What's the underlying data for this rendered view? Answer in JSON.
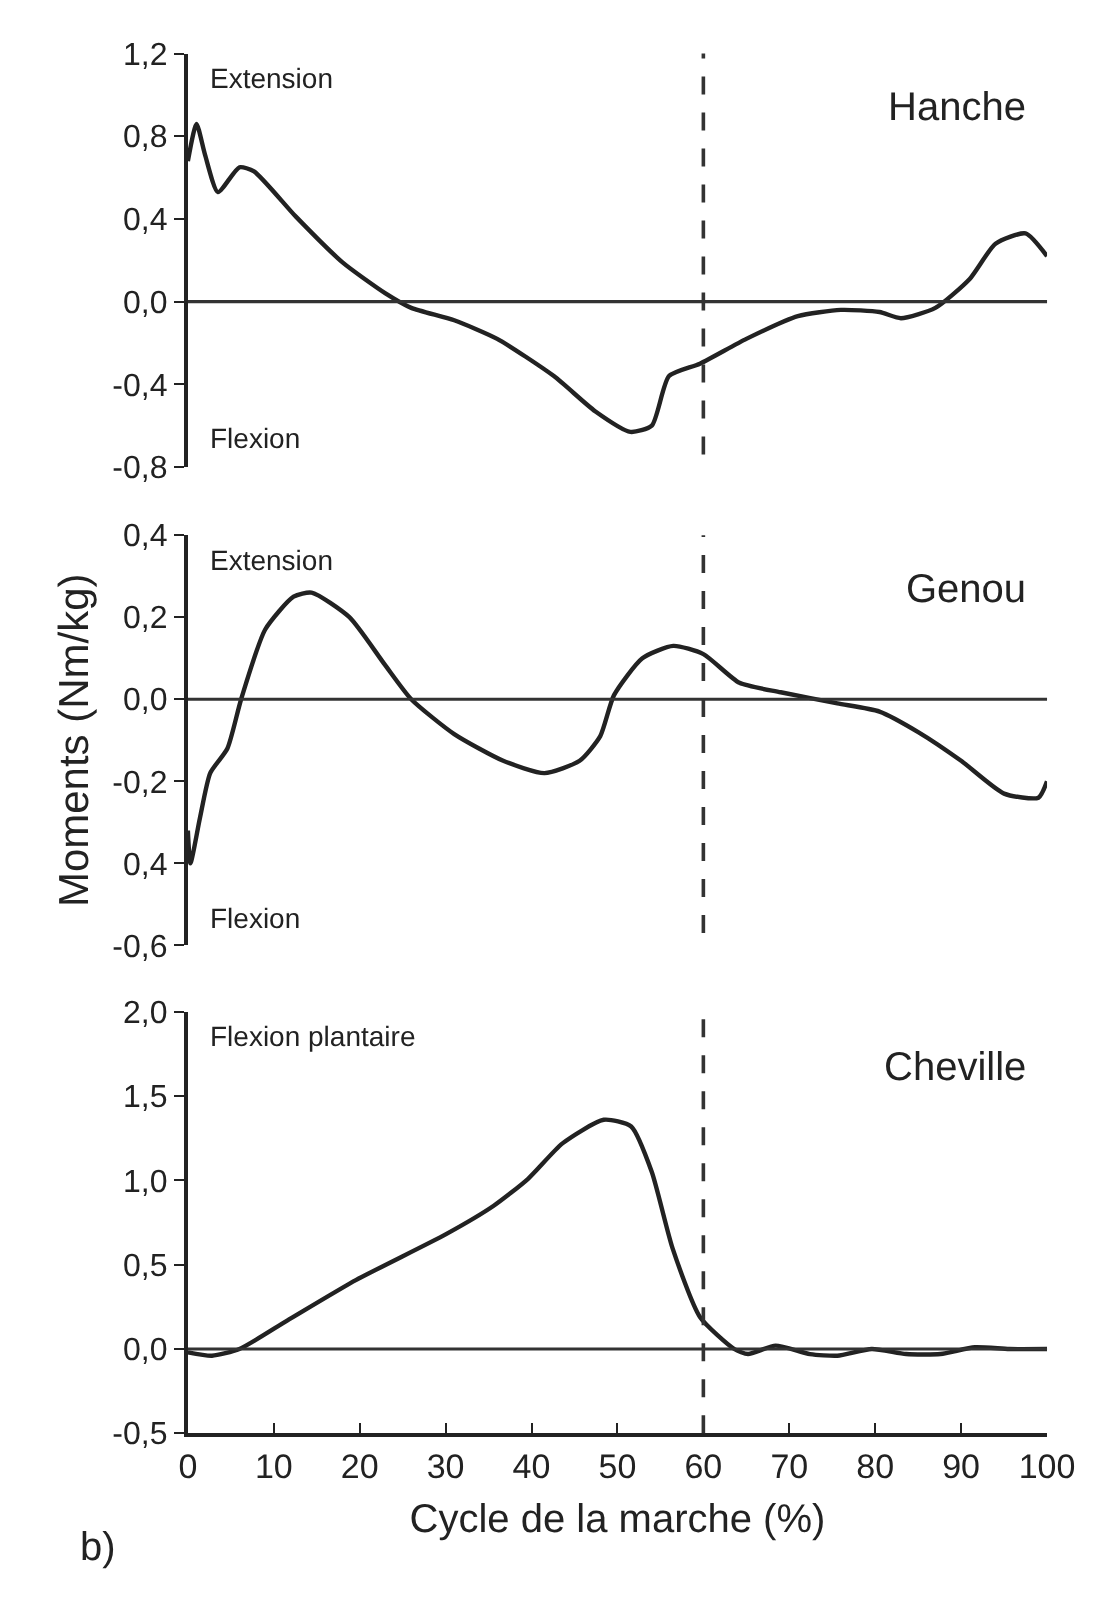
{
  "chart_data": [
    {
      "type": "line",
      "title": "Hanche",
      "annotations": [
        "Extension",
        "Flexion"
      ],
      "x": [
        0,
        1,
        2,
        3.5,
        6,
        7.7,
        12.6,
        18,
        23,
        26,
        31,
        36,
        42.6,
        47.4,
        51.5,
        54,
        56,
        59.6,
        65,
        71,
        76,
        80.5,
        83,
        87,
        91,
        94,
        97.5,
        100
      ],
      "series": [
        {
          "color": "#222222",
          "values": [
            0.68,
            0.86,
            0.71,
            0.53,
            0.65,
            0.63,
            0.41,
            0.19,
            0.04,
            -0.03,
            -0.09,
            -0.18,
            -0.36,
            -0.53,
            -0.63,
            -0.6,
            -0.36,
            -0.3,
            -0.18,
            -0.07,
            -0.04,
            -0.05,
            -0.08,
            -0.03,
            0.11,
            0.28,
            0.33,
            0.22
          ]
        }
      ],
      "xlim": [
        0,
        100
      ],
      "ylim": [
        -0.8,
        1.2
      ],
      "yticks": [
        {
          "value": 1.2,
          "label": "1,2"
        },
        {
          "value": 0.8,
          "label": "0,8"
        },
        {
          "value": 0.4,
          "label": "0,4"
        },
        {
          "value": 0,
          "label": "0,0"
        },
        {
          "value": -0.4,
          "label": "-0,4"
        },
        {
          "value": -0.8,
          "label": "-0,8"
        }
      ],
      "ref_lines": [
        {
          "axis": "y",
          "value": 0,
          "color": "#333333",
          "line_style": "solid"
        },
        {
          "axis": "x",
          "value": 60,
          "color": "#333333",
          "line_style": "dashed"
        }
      ],
      "tick_labels": "y"
    },
    {
      "type": "line",
      "title": "Genou",
      "ylabel": "Moments (Nm/kg)",
      "annotations": [
        "Extension",
        "Flexion"
      ],
      "x": [
        0,
        0.3,
        1.4,
        2.6,
        4.6,
        6.2,
        9,
        12.3,
        14.4,
        18.8,
        22.9,
        26,
        31,
        36.7,
        41.5,
        45.6,
        48,
        49.6,
        52.9,
        56.5,
        60,
        64.2,
        69,
        75.6,
        80.5,
        85,
        90,
        95,
        99,
        100
      ],
      "series": [
        {
          "color": "#222222",
          "values": [
            -0.32,
            -0.4,
            -0.29,
            -0.18,
            -0.12,
            0.0,
            0.17,
            0.25,
            0.26,
            0.2,
            0.085,
            0,
            -0.085,
            -0.15,
            -0.18,
            -0.15,
            -0.09,
            0.01,
            0.1,
            0.13,
            0.11,
            0.04,
            0.017,
            -0.01,
            -0.03,
            -0.08,
            -0.15,
            -0.23,
            -0.24,
            -0.2
          ]
        }
      ],
      "xlim": [
        0,
        100
      ],
      "ylim": [
        -0.6,
        0.4
      ],
      "yticks": [
        {
          "value": 0.4,
          "label": "0,4"
        },
        {
          "value": 0.2,
          "label": "0,2"
        },
        {
          "value": 0,
          "label": "0,0"
        },
        {
          "value": -0.2,
          "label": "-0,2"
        },
        {
          "value": -0.4,
          "label": "0,4"
        },
        {
          "value": -0.6,
          "label": "-0,6"
        }
      ],
      "ref_lines": [
        {
          "axis": "y",
          "value": 0,
          "color": "#333333",
          "line_style": "solid"
        },
        {
          "axis": "x",
          "value": 60,
          "color": "#333333",
          "line_style": "dashed"
        }
      ],
      "tick_labels": "y"
    },
    {
      "type": "line",
      "title": "Cheville",
      "xlabel": "Cycle de la marche (%)",
      "annotations": [
        "Flexion plantaire",
        "b)"
      ],
      "x": [
        0,
        2.8,
        6,
        11.6,
        19.6,
        30,
        35.6,
        39.6,
        43.6,
        48.4,
        51.6,
        54,
        56.4,
        59.6,
        63.6,
        65.2,
        68.4,
        72.4,
        75.6,
        79.6,
        83.6,
        87.6,
        91.6,
        95.6,
        100
      ],
      "series": [
        {
          "color": "#222222",
          "values": [
            -0.02,
            -0.04,
            0.0,
            0.17,
            0.41,
            0.68,
            0.85,
            1.01,
            1.22,
            1.36,
            1.32,
            1.05,
            0.6,
            0.19,
            0.0,
            -0.03,
            0.02,
            -0.03,
            -0.04,
            0.0,
            -0.03,
            -0.03,
            0.01,
            0.0,
            0.0
          ]
        }
      ],
      "xlim": [
        0,
        100
      ],
      "ylim": [
        -0.5,
        2.0
      ],
      "xticks": [
        0,
        10,
        20,
        30,
        40,
        50,
        60,
        70,
        80,
        90,
        100
      ],
      "yticks": [
        {
          "value": 2.0,
          "label": "2,0"
        },
        {
          "value": 1.5,
          "label": "1,5"
        },
        {
          "value": 1.0,
          "label": "1,0"
        },
        {
          "value": 0.5,
          "label": "0,5"
        },
        {
          "value": 0,
          "label": "0,0"
        },
        {
          "value": -0.5,
          "label": "-0,5"
        }
      ],
      "ref_lines": [
        {
          "axis": "y",
          "value": 0,
          "color": "#333333",
          "line_style": "solid"
        },
        {
          "axis": "x",
          "value": 60,
          "color": "#333333",
          "line_style": "dashed"
        }
      ]
    }
  ]
}
